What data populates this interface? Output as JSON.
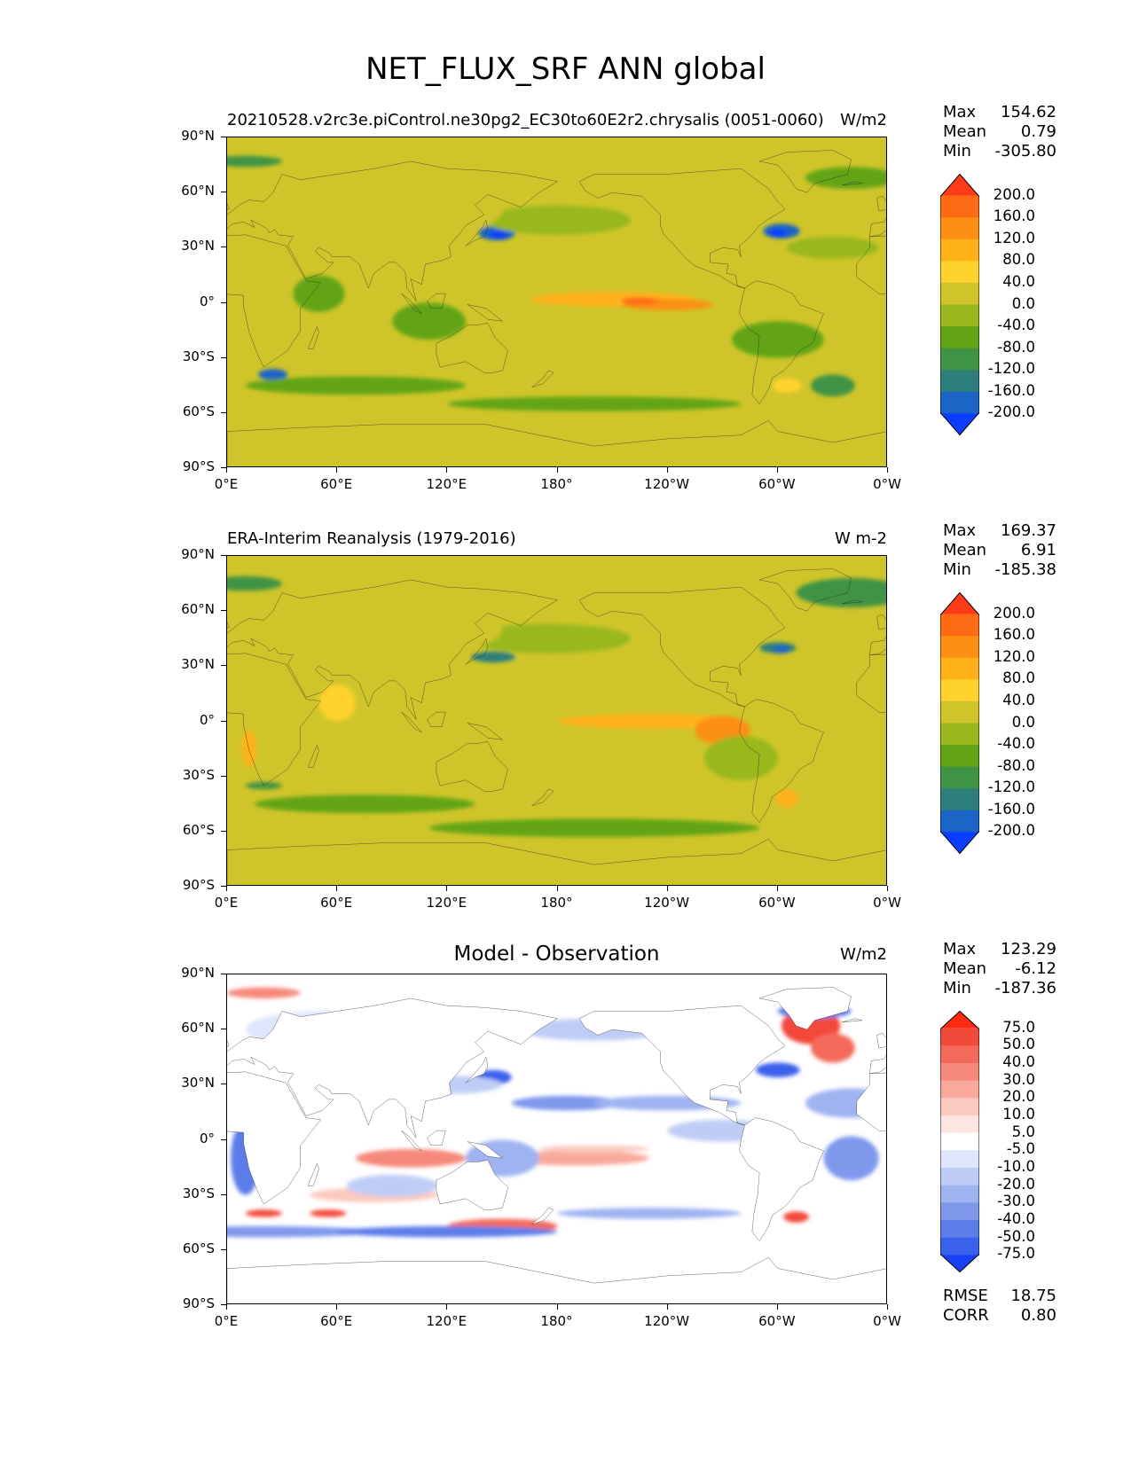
{
  "figure": {
    "title": "NET_FLUX_SRF ANN global"
  },
  "axes": {
    "lat_ticks": [
      "90°N",
      "60°N",
      "30°N",
      "0°",
      "30°S",
      "60°S",
      "90°S"
    ],
    "lon_ticks": [
      "0°E",
      "60°E",
      "120°E",
      "180°",
      "120°W",
      "60°W",
      "0°W"
    ]
  },
  "panels": [
    {
      "id": "model",
      "title_left": "20210528.v2rc3e.piControl.ne30pg2_EC30to60E2r2.chrysalis (0051-0060)",
      "title_center": "",
      "units": "W/m2",
      "stats": {
        "max_label": "Max",
        "max": "154.62",
        "mean_label": "Mean",
        "mean": "0.79",
        "min_label": "Min",
        "min": "-305.80"
      },
      "colorbar": {
        "labels": [
          "200.0",
          "160.0",
          "120.0",
          "80.0",
          "40.0",
          "0.0",
          "-40.0",
          "-80.0",
          "-120.0",
          "-160.0",
          "-200.0"
        ],
        "colors": [
          "#ff3b1a",
          "#ff6a14",
          "#fc8f12",
          "#ffb11a",
          "#ffd22d",
          "#cfc52a",
          "#98b81d",
          "#62a416",
          "#409344",
          "#2e7f7b",
          "#1b64c6",
          "#0a3dff"
        ]
      }
    },
    {
      "id": "observation",
      "title_left": "ERA-Interim Reanalysis (1979-2016)",
      "title_center": "",
      "units": "W m-2",
      "stats": {
        "max_label": "Max",
        "max": "169.37",
        "mean_label": "Mean",
        "mean": "6.91",
        "min_label": "Min",
        "min": "-185.38"
      },
      "colorbar": {
        "labels": [
          "200.0",
          "160.0",
          "120.0",
          "80.0",
          "40.0",
          "0.0",
          "-40.0",
          "-80.0",
          "-120.0",
          "-160.0",
          "-200.0"
        ],
        "colors": [
          "#ff3b1a",
          "#ff6a14",
          "#fc8f12",
          "#ffb11a",
          "#ffd22d",
          "#cfc52a",
          "#98b81d",
          "#62a416",
          "#409344",
          "#2e7f7b",
          "#1b64c6",
          "#0a3dff"
        ]
      }
    },
    {
      "id": "difference",
      "title_left": "",
      "title_center": "Model - Observation",
      "units": "W/m2",
      "stats": {
        "max_label": "Max",
        "max": "123.29",
        "mean_label": "Mean",
        "mean": "-6.12",
        "min_label": "Min",
        "min": "-187.36"
      },
      "colorbar": {
        "labels": [
          "75.0",
          "50.0",
          "40.0",
          "30.0",
          "20.0",
          "10.0",
          "5.0",
          "-5.0",
          "-10.0",
          "-20.0",
          "-30.0",
          "-40.0",
          "-50.0",
          "-75.0"
        ],
        "colors": [
          "#ff2a10",
          "#f24a3a",
          "#f36a5c",
          "#f6897c",
          "#f9a99c",
          "#fbc9bf",
          "#fde6e1",
          "#ffffff",
          "#dfe6fb",
          "#bfcdf6",
          "#9fb3f1",
          "#7f98ec",
          "#5c7de9",
          "#3a60ec",
          "#1840f5"
        ]
      },
      "metrics": {
        "rmse_label": "RMSE",
        "rmse": "18.75",
        "corr_label": "CORR",
        "corr": "0.80"
      }
    }
  ]
}
